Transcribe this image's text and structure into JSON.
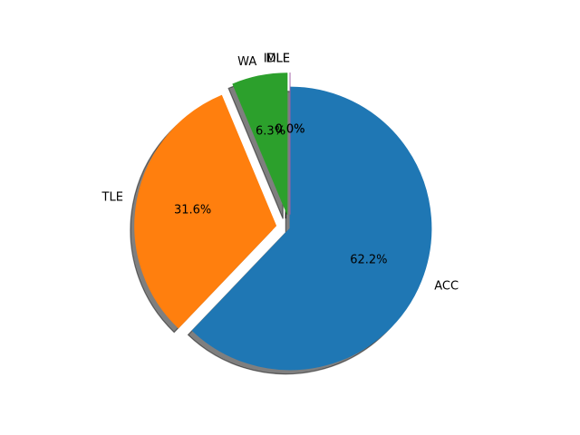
{
  "chart_data": {
    "type": "pie",
    "categories": [
      "ACC",
      "TLE",
      "WA",
      "MLE",
      "IDLE"
    ],
    "values": [
      62.2,
      31.6,
      6.3,
      0.0,
      0.0
    ],
    "percent_labels": [
      "62.2%",
      "31.6%",
      "6.3%",
      "0.0%",
      "0.0%"
    ],
    "explode": [
      0.0,
      0.1,
      0.1,
      0.1,
      0.1
    ],
    "start_angle_deg": 90,
    "direction": "clockwise",
    "shadow": true,
    "colors": [
      "#1f77b4",
      "#ff7f0e",
      "#2ca02c",
      "#d62728",
      "#9467bd"
    ],
    "title": "",
    "legend": false
  }
}
